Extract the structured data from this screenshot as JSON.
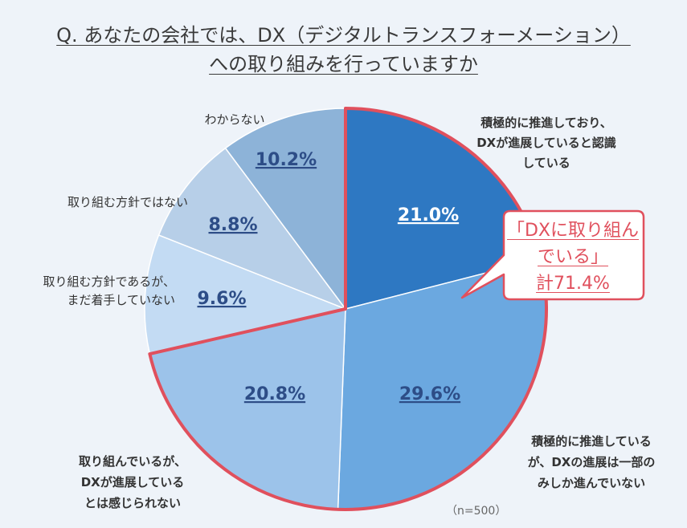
{
  "question": {
    "line1": "Q. あなたの会社では、DX（デジタルトランスフォーメーション）",
    "line2": "への取り組みを行っていますか"
  },
  "callout": {
    "line1": "「DXに取り組ん",
    "line2": "でいる」",
    "line3": "計71.4%"
  },
  "sample_note": "（n=500）",
  "colors": {
    "background": "#eef3f9",
    "highlight": "#e0505d",
    "slices": [
      "#2e78c2",
      "#6ba8e0",
      "#9cc3ea",
      "#c3dbf3",
      "#b7cfe8",
      "#8db3d8"
    ]
  },
  "chart_data": {
    "type": "pie",
    "title": "Q. あなたの会社では、DX（デジタルトランスフォーメーション）への取り組みを行っていますか",
    "unit": "%",
    "slices": [
      {
        "label": "積極的に推進しており、DXが進展していると認識している",
        "label_lines": [
          "積極的に推進しており、",
          "DXが進展していると認識",
          "している"
        ],
        "value": 21.0,
        "value_label": "21.0%"
      },
      {
        "label": "積極的に推進しているが、DXの進展は一部のみしか進んでいない",
        "label_lines": [
          "積極的に推進している",
          "が、DXの進展は一部の",
          "みしか進んでいない"
        ],
        "value": 29.6,
        "value_label": "29.6%"
      },
      {
        "label": "取り組んでいるが、DXが進展しているとは感じられない",
        "label_lines": [
          "取り組んでいるが、",
          "DXが進展している",
          "とは感じられない"
        ],
        "value": 20.8,
        "value_label": "20.8%"
      },
      {
        "label": "取り組む方針であるが、まだ着手していない",
        "label_lines": [
          "取り組む方針であるが、",
          "まだ着手していない"
        ],
        "value": 9.6,
        "value_label": "9.6%"
      },
      {
        "label": "取り組む方針ではない",
        "label_lines": [
          "取り組む方針ではない"
        ],
        "value": 8.8,
        "value_label": "8.8%"
      },
      {
        "label": "わからない",
        "label_lines": [
          "わからない"
        ],
        "value": 10.2,
        "value_label": "10.2%"
      }
    ],
    "highlight_group": {
      "label": "「DXに取り組んでいる」",
      "slices": [
        0,
        1,
        2
      ],
      "total": 71.4
    },
    "n": 500
  }
}
